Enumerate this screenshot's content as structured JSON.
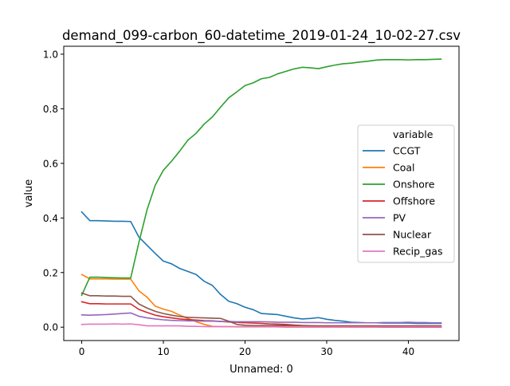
{
  "chart_data": {
    "type": "line",
    "title": "demand_099-carbon_60-datetime_2019-01-24_10-02-27.csv",
    "xlabel": "Unnamed: 0",
    "ylabel": "value",
    "xlim": [
      -2.2,
      46.2
    ],
    "ylim": [
      -0.049,
      1.029
    ],
    "xticks": [
      0,
      10,
      20,
      30,
      40
    ],
    "yticks": [
      0.0,
      0.2,
      0.4,
      0.6,
      0.8,
      1.0
    ],
    "xtick_labels": [
      "0",
      "10",
      "20",
      "30",
      "40"
    ],
    "ytick_labels": [
      "0.0",
      "0.2",
      "0.4",
      "0.6",
      "0.8",
      "1.0"
    ],
    "grid": false,
    "legend": {
      "title": "variable",
      "placement": "center-right"
    },
    "x": [
      0,
      1,
      2,
      3,
      4,
      5,
      6,
      7,
      8,
      9,
      10,
      11,
      12,
      13,
      14,
      15,
      16,
      17,
      18,
      19,
      20,
      21,
      22,
      23,
      24,
      25,
      26,
      27,
      28,
      29,
      30,
      31,
      32,
      33,
      34,
      35,
      36,
      37,
      38,
      39,
      40,
      41,
      42,
      43,
      44
    ],
    "series": [
      {
        "name": "CCGT",
        "color": "#1f77b4",
        "values": [
          0.422,
          0.39,
          0.39,
          0.389,
          0.388,
          0.388,
          0.387,
          0.33,
          0.3,
          0.27,
          0.242,
          0.232,
          0.215,
          0.204,
          0.193,
          0.168,
          0.153,
          0.12,
          0.095,
          0.086,
          0.073,
          0.064,
          0.05,
          0.048,
          0.046,
          0.04,
          0.034,
          0.03,
          0.032,
          0.035,
          0.029,
          0.025,
          0.022,
          0.018,
          0.017,
          0.016,
          0.016,
          0.015,
          0.015,
          0.015,
          0.015,
          0.014,
          0.014,
          0.014,
          0.014
        ]
      },
      {
        "name": "Coal",
        "color": "#ff7f0e",
        "values": [
          0.193,
          0.177,
          0.177,
          0.177,
          0.176,
          0.176,
          0.176,
          0.133,
          0.11,
          0.077,
          0.066,
          0.058,
          0.044,
          0.032,
          0.02,
          0.01,
          0.003,
          0.002,
          0.002,
          0.001,
          0.001,
          0.001,
          0.001,
          0.001,
          0.001,
          0.0,
          0.0,
          0.0,
          0.0,
          0.0,
          0.0,
          0.0,
          0.0,
          0.0,
          0.0,
          0.0,
          0.0,
          0.0,
          0.0,
          0.0,
          0.0,
          0.0,
          0.0,
          0.0,
          0.0
        ]
      },
      {
        "name": "Onshore",
        "color": "#2ca02c",
        "values": [
          0.117,
          0.183,
          0.183,
          0.182,
          0.181,
          0.18,
          0.18,
          0.31,
          0.43,
          0.52,
          0.575,
          0.608,
          0.645,
          0.685,
          0.71,
          0.744,
          0.77,
          0.806,
          0.84,
          0.862,
          0.885,
          0.895,
          0.91,
          0.915,
          0.928,
          0.937,
          0.946,
          0.952,
          0.95,
          0.947,
          0.954,
          0.96,
          0.965,
          0.967,
          0.971,
          0.974,
          0.978,
          0.98,
          0.98,
          0.98,
          0.979,
          0.98,
          0.98,
          0.981,
          0.982
        ]
      },
      {
        "name": "Offshore",
        "color": "#d62728",
        "values": [
          0.093,
          0.086,
          0.086,
          0.085,
          0.085,
          0.085,
          0.085,
          0.065,
          0.054,
          0.044,
          0.038,
          0.034,
          0.03,
          0.028,
          0.026,
          0.024,
          0.023,
          0.021,
          0.019,
          0.018,
          0.016,
          0.015,
          0.014,
          0.012,
          0.011,
          0.01,
          0.008,
          0.006,
          0.005,
          0.004,
          0.003,
          0.002,
          0.002,
          0.001,
          0.001,
          0.001,
          0.001,
          0.0,
          0.0,
          0.0,
          0.0,
          0.0,
          0.0,
          0.0,
          0.0
        ]
      },
      {
        "name": "PV",
        "color": "#9467bd",
        "values": [
          0.045,
          0.044,
          0.045,
          0.046,
          0.048,
          0.05,
          0.052,
          0.04,
          0.034,
          0.03,
          0.027,
          0.025,
          0.024,
          0.023,
          0.023,
          0.022,
          0.022,
          0.021,
          0.021,
          0.02,
          0.02,
          0.02,
          0.02,
          0.019,
          0.018,
          0.018,
          0.018,
          0.017,
          0.017,
          0.017,
          0.016,
          0.016,
          0.016,
          0.016,
          0.016,
          0.016,
          0.016,
          0.017,
          0.017,
          0.017,
          0.018,
          0.017,
          0.017,
          0.016,
          0.016
        ]
      },
      {
        "name": "Nuclear",
        "color": "#8c564b",
        "values": [
          0.125,
          0.115,
          0.115,
          0.114,
          0.114,
          0.113,
          0.113,
          0.085,
          0.07,
          0.058,
          0.05,
          0.044,
          0.039,
          0.036,
          0.035,
          0.034,
          0.033,
          0.032,
          0.022,
          0.01,
          0.007,
          0.006,
          0.006,
          0.006,
          0.006,
          0.006,
          0.006,
          0.006,
          0.005,
          0.005,
          0.005,
          0.005,
          0.005,
          0.005,
          0.005,
          0.005,
          0.005,
          0.005,
          0.005,
          0.005,
          0.005,
          0.005,
          0.005,
          0.005,
          0.005
        ]
      },
      {
        "name": "Recip_gas",
        "color": "#e377c2",
        "values": [
          0.01,
          0.011,
          0.011,
          0.011,
          0.012,
          0.011,
          0.012,
          0.009,
          0.005,
          0.005,
          0.005,
          0.005,
          0.005,
          0.003,
          0.003,
          0.002,
          0.002,
          0.002,
          0.002,
          0.002,
          0.002,
          0.002,
          0.002,
          0.002,
          0.001,
          0.001,
          0.001,
          0.001,
          0.001,
          0.001,
          0.001,
          0.001,
          0.001,
          0.001,
          0.001,
          0.001,
          0.001,
          0.001,
          0.001,
          0.001,
          0.001,
          0.001,
          0.001,
          0.001,
          0.001
        ]
      }
    ]
  }
}
